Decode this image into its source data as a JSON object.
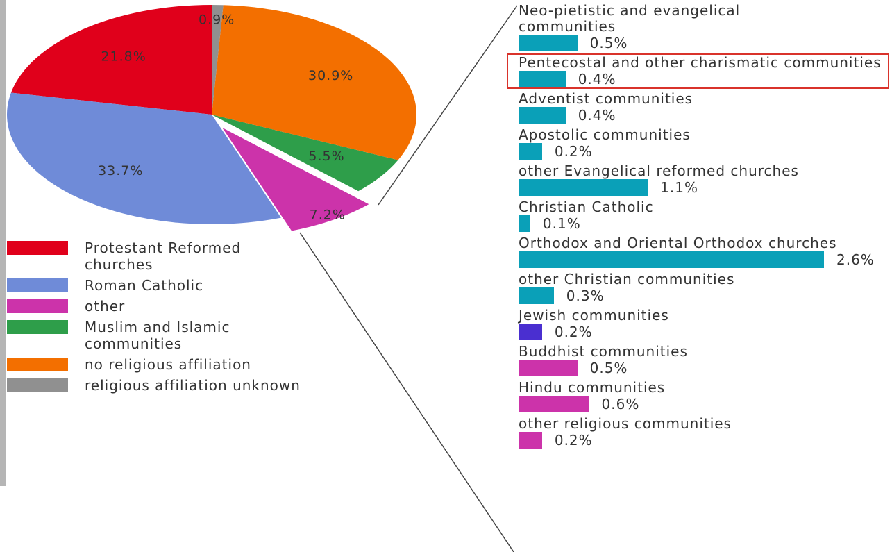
{
  "chart_data": [
    {
      "type": "pie",
      "categories": [
        "Protestant Reformed  churches",
        "Roman Catholic",
        "other",
        "Muslim and Islamic communities",
        "no religious affiliation",
        "religious affiliation unknown"
      ],
      "values": [
        21.8,
        33.7,
        7.2,
        5.5,
        30.9,
        0.9
      ],
      "value_labels": [
        "21.8%",
        "33.7%",
        "7.2%",
        "5.5%",
        "30.9%",
        "0.9%"
      ],
      "colors": [
        "#e0001b",
        "#6f8bd8",
        "#cc33aa",
        "#2e9e4a",
        "#f36f00",
        "#909090"
      ],
      "exploded_slice": "other",
      "legend": "bottom-left"
    },
    {
      "type": "bar",
      "orientation": "horizontal",
      "categories": [
        "Neo-pietistic and evangelical communities",
        "Pentecostal and other charismatic communities",
        "Adventist communities",
        "Apostolic communities",
        "other Evangelical reformed churches",
        "Christian Catholic",
        "Orthodox and Oriental Orthodox churches",
        "other Christian communities",
        "Jewish communities",
        "Buddhist communities",
        "Hindu communities",
        "other religious communities"
      ],
      "values": [
        0.5,
        0.4,
        0.4,
        0.2,
        1.1,
        0.1,
        2.6,
        0.3,
        0.2,
        0.5,
        0.6,
        0.2
      ],
      "value_labels": [
        "0.5%",
        "0.4%",
        "0.4%",
        "0.2%",
        "1.1%",
        "0.1%",
        "2.6%",
        "0.3%",
        "0.2%",
        "0.5%",
        "0.6%",
        "0.2%"
      ],
      "colors": [
        "#0aa0b8",
        "#0aa0b8",
        "#0aa0b8",
        "#0aa0b8",
        "#0aa0b8",
        "#0aa0b8",
        "#0aa0b8",
        "#0aa0b8",
        "#4a2fd0",
        "#cc33aa",
        "#cc33aa",
        "#cc33aa"
      ],
      "highlighted": "Pentecostal and other charismatic communities"
    }
  ]
}
